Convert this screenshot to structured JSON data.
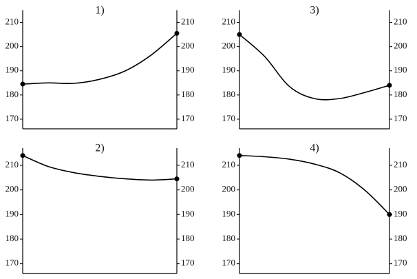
{
  "chart_data": [
    {
      "type": "line",
      "title": "1)",
      "categories": [
        null,
        null,
        null,
        null,
        null,
        null,
        null
      ],
      "values": [
        184.5,
        185,
        184.8,
        186.5,
        190,
        196.5,
        205.5
      ],
      "color": "#000000",
      "ylim": [
        166,
        215
      ],
      "yticks": [
        170,
        180,
        190,
        200,
        210
      ]
    },
    {
      "type": "line",
      "title": "2)",
      "categories": [
        null,
        null,
        null,
        null,
        null,
        null,
        null
      ],
      "values": [
        214,
        209.5,
        207,
        205.5,
        204.5,
        204,
        204.5
      ],
      "color": "#000000",
      "ylim": [
        166,
        217
      ],
      "yticks": [
        170,
        180,
        190,
        200,
        210
      ]
    },
    {
      "type": "line",
      "title": "3)",
      "categories": [
        null,
        null,
        null,
        null,
        null,
        null,
        null
      ],
      "values": [
        205,
        196,
        183.5,
        178.5,
        178.5,
        181,
        184
      ],
      "color": "#000000",
      "ylim": [
        166,
        215
      ],
      "yticks": [
        170,
        180,
        190,
        200,
        210
      ]
    },
    {
      "type": "line",
      "title": "4)",
      "categories": [
        null,
        null,
        null,
        null,
        null,
        null,
        null
      ],
      "values": [
        214,
        213.5,
        212.5,
        210.5,
        207,
        200,
        190
      ],
      "color": "#000000",
      "ylim": [
        166,
        217
      ],
      "yticks": [
        170,
        180,
        190,
        200,
        210
      ]
    }
  ]
}
